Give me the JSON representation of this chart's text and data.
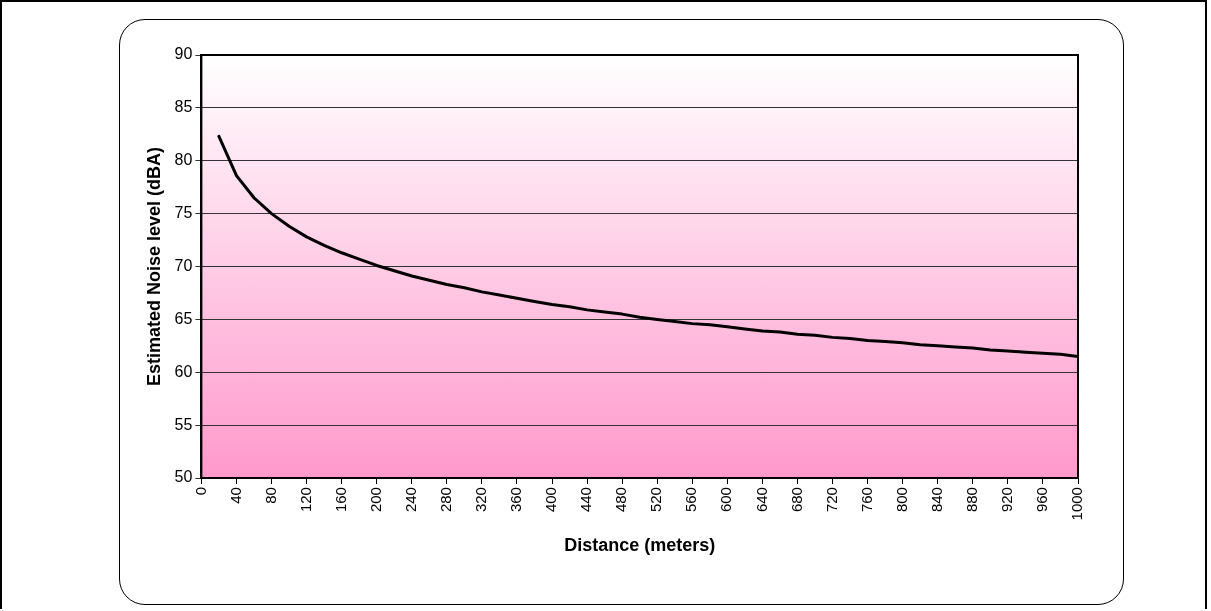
{
  "chart_data": {
    "type": "line",
    "xlabel": "Distance (meters)",
    "ylabel": "Estimated Noise level (dBA)",
    "x": [
      20,
      40,
      60,
      80,
      100,
      120,
      140,
      160,
      180,
      200,
      220,
      240,
      260,
      280,
      300,
      320,
      340,
      360,
      380,
      400,
      420,
      440,
      460,
      480,
      500,
      520,
      540,
      560,
      580,
      600,
      620,
      640,
      660,
      680,
      700,
      720,
      740,
      760,
      780,
      800,
      820,
      840,
      860,
      880,
      900,
      920,
      940,
      960,
      980,
      1000
    ],
    "series": [
      {
        "color": "#000000",
        "values": [
          82.3,
          78.6,
          76.5,
          75.0,
          73.8,
          72.8,
          72.0,
          71.3,
          70.7,
          70.1,
          69.6,
          69.1,
          68.7,
          68.3,
          68.0,
          67.6,
          67.3,
          67.0,
          66.7,
          66.4,
          66.2,
          65.9,
          65.7,
          65.5,
          65.2,
          65.0,
          64.8,
          64.6,
          64.5,
          64.3,
          64.1,
          63.9,
          63.8,
          63.6,
          63.5,
          63.3,
          63.2,
          63.0,
          62.9,
          62.8,
          62.6,
          62.5,
          62.4,
          62.3,
          62.1,
          62.0,
          61.9,
          61.8,
          61.7,
          61.5
        ]
      }
    ],
    "xlim": [
      0,
      1000
    ],
    "xticks": [
      0,
      40,
      80,
      120,
      160,
      200,
      240,
      280,
      320,
      360,
      400,
      440,
      480,
      520,
      560,
      600,
      640,
      680,
      720,
      760,
      800,
      840,
      880,
      920,
      960,
      1000
    ],
    "ylim": [
      50,
      90
    ],
    "yticks": [
      50,
      55,
      60,
      65,
      70,
      75,
      80,
      85,
      90
    ],
    "grid": "y",
    "legend": false,
    "marker": "none",
    "line_style": "solid"
  }
}
